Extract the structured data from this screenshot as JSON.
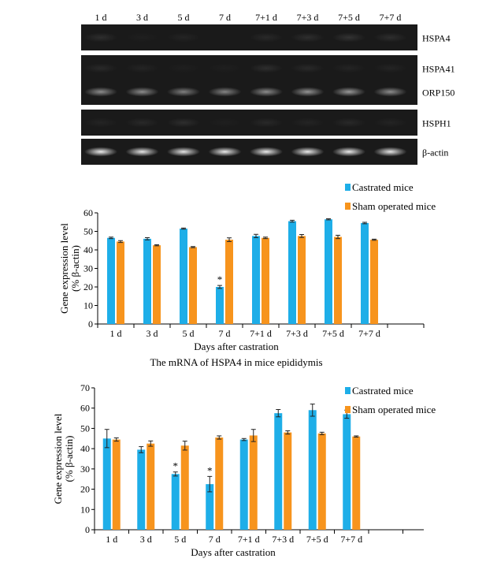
{
  "gel": {
    "lanes": [
      "1 d",
      "3 d",
      "5 d",
      "7 d",
      "7+1 d",
      "7+3 d",
      "7+5 d",
      "7+7 d"
    ],
    "rows": [
      {
        "label": "HSPA4",
        "intensities": [
          0.18,
          0.12,
          0.14,
          0.1,
          0.16,
          0.18,
          0.2,
          0.18
        ]
      },
      {
        "label": "HSPA41",
        "intensities": [
          0.16,
          0.14,
          0.12,
          0.12,
          0.18,
          0.16,
          0.14,
          0.14
        ]
      },
      {
        "label": "ORP150",
        "intensities": [
          0.55,
          0.55,
          0.5,
          0.52,
          0.55,
          0.58,
          0.6,
          0.55
        ]
      },
      {
        "label": "HSPH1",
        "intensities": [
          0.14,
          0.16,
          0.18,
          0.12,
          0.16,
          0.14,
          0.16,
          0.14
        ]
      },
      {
        "label": "β-actin",
        "intensities": [
          0.92,
          0.9,
          0.9,
          0.92,
          0.92,
          0.92,
          0.92,
          0.9
        ]
      }
    ]
  },
  "colors": {
    "castrated": "#1eaee8",
    "sham": "#f7941d"
  },
  "chart_data": [
    {
      "type": "bar",
      "title": "The mRNA of HSPA4 in mice epididymis",
      "xlabel": "Days after castration",
      "ylabel": [
        "Gene expression level",
        "(% β-actin)"
      ],
      "ylim": [
        0,
        60
      ],
      "yticks": [
        0,
        10,
        20,
        30,
        40,
        50,
        60
      ],
      "categories": [
        "1 d",
        "3 d",
        "5 d",
        "7 d",
        "7+1 d",
        "7+3 d",
        "7+5 d",
        "7+7 d"
      ],
      "legend_position": "top-right",
      "grid": false,
      "series": [
        {
          "name": "Castrated mice",
          "values": [
            46.5,
            46,
            51.5,
            20,
            47.5,
            55.5,
            56.5,
            54.5
          ],
          "errors": [
            0.4,
            0.6,
            0.3,
            0.8,
            0.9,
            0.5,
            0.3,
            0.4
          ],
          "stars": [
            "",
            "",
            "",
            "*",
            "",
            "",
            "",
            ""
          ]
        },
        {
          "name": "Sham operated mice",
          "values": [
            44.5,
            42.5,
            41.5,
            45.5,
            46.5,
            47.5,
            47,
            45.5
          ],
          "errors": [
            0.5,
            0.3,
            0.3,
            1.0,
            0.4,
            0.8,
            0.9,
            0.3
          ],
          "stars": [
            "",
            "",
            "",
            "",
            "",
            "",
            "",
            ""
          ]
        }
      ]
    },
    {
      "type": "bar",
      "title": "",
      "xlabel": "Days after castration",
      "ylabel": [
        "Gene expression level",
        "(% β-actin)"
      ],
      "ylim": [
        0,
        70
      ],
      "yticks": [
        0,
        10,
        20,
        30,
        40,
        50,
        60,
        70
      ],
      "categories": [
        "1 d",
        "3 d",
        "5 d",
        "7 d",
        "7+1 d",
        "7+3 d",
        "7+5 d",
        "7+7 d"
      ],
      "legend_position": "top-right",
      "grid": false,
      "series": [
        {
          "name": "Castrated mice",
          "values": [
            45,
            39.5,
            27.5,
            22.5,
            44.5,
            57.5,
            59,
            57
          ],
          "errors": [
            4.5,
            1.5,
            1.0,
            3.8,
            0.5,
            1.8,
            3.0,
            2.0
          ],
          "stars": [
            "",
            "",
            "*",
            "*",
            "",
            "",
            "",
            ""
          ]
        },
        {
          "name": "Sham operated mice",
          "values": [
            44.5,
            42.5,
            41.5,
            45.5,
            46.5,
            48,
            47.5,
            46
          ],
          "errors": [
            0.8,
            1.3,
            2.2,
            0.8,
            3.0,
            0.8,
            0.6,
            0.3
          ],
          "stars": [
            "",
            "",
            "",
            "",
            "",
            "",
            "",
            ""
          ]
        }
      ]
    }
  ]
}
